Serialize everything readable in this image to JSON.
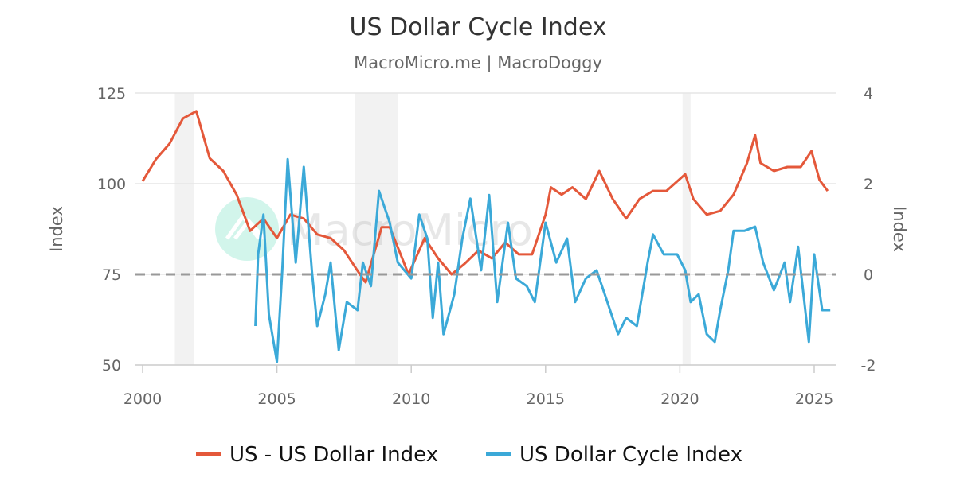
{
  "chart_data": {
    "type": "line",
    "title": "US Dollar Cycle Index",
    "subtitle": "MacroMicro.me | MacroDoggy",
    "watermark": "MacroMicro",
    "xlim": [
      2000,
      2025.8
    ],
    "x_ticks": [
      "2000",
      "2005",
      "2010",
      "2015",
      "2020",
      "2025"
    ],
    "y_left": {
      "label": "Index",
      "range": [
        50,
        125
      ],
      "ticks": [
        "50",
        "75",
        "100",
        "125"
      ]
    },
    "y_right": {
      "label": "Index",
      "range": [
        -2,
        4
      ],
      "ticks": [
        "-2",
        "0",
        "2",
        "4"
      ]
    },
    "reference_line": {
      "axis": "right",
      "value": 0,
      "style": "dashed",
      "color": "#999999"
    },
    "recession_shading": [
      [
        2001.2,
        2001.9
      ],
      [
        2007.9,
        2009.5
      ],
      [
        2020.1,
        2020.4
      ]
    ],
    "grid": "horizontal",
    "legend_position": "bottom",
    "series": [
      {
        "name": "US - US Dollar Index",
        "axis": "left",
        "color": "#e4583a",
        "x": [
          2000.0,
          2000.5,
          2001.0,
          2001.5,
          2002.0,
          2002.5,
          2003.0,
          2003.5,
          2004.0,
          2004.5,
          2005.0,
          2005.5,
          2006.0,
          2006.5,
          2007.0,
          2007.5,
          2008.0,
          2008.3,
          2008.9,
          2009.2,
          2009.9,
          2010.5,
          2011.0,
          2011.5,
          2012.0,
          2012.5,
          2013.0,
          2013.5,
          2014.0,
          2014.5,
          2015.0,
          2015.2,
          2015.6,
          2016.0,
          2016.5,
          2017.0,
          2017.5,
          2018.0,
          2018.5,
          2019.0,
          2019.5,
          2020.2,
          2020.5,
          2021.0,
          2021.5,
          2022.0,
          2022.5,
          2022.8,
          2023.0,
          2023.5,
          2024.0,
          2024.5,
          2024.9,
          2025.2,
          2025.5
        ],
        "y": [
          100.7,
          106.8,
          111,
          118,
          120,
          107,
          103.5,
          97,
          87,
          90.4,
          85,
          91.5,
          90.4,
          86,
          85,
          81.6,
          76,
          72.8,
          88,
          88,
          75,
          85,
          79.4,
          75,
          78,
          81.6,
          79.4,
          83.8,
          80.5,
          80.5,
          91.5,
          99,
          97,
          99,
          95.8,
          103.5,
          95.8,
          90.4,
          95.8,
          98,
          98,
          102.6,
          95.8,
          91.5,
          92.5,
          97,
          105.7,
          113.4,
          105.7,
          103.5,
          104.6,
          104.6,
          109,
          101,
          98
        ]
      },
      {
        "name": "US Dollar Cycle Index",
        "axis": "right",
        "color": "#3ba9d8",
        "x": [
          2004.2,
          2004.3,
          2004.5,
          2004.7,
          2005.0,
          2005.2,
          2005.4,
          2005.7,
          2006.0,
          2006.3,
          2006.5,
          2006.8,
          2007.0,
          2007.3,
          2007.6,
          2008.0,
          2008.2,
          2008.5,
          2008.8,
          2009.2,
          2009.5,
          2010.0,
          2010.3,
          2010.6,
          2010.8,
          2011.0,
          2011.2,
          2011.6,
          2011.9,
          2012.2,
          2012.6,
          2012.9,
          2013.2,
          2013.6,
          2013.9,
          2014.3,
          2014.6,
          2015.0,
          2015.4,
          2015.8,
          2016.1,
          2016.5,
          2016.9,
          2017.3,
          2017.7,
          2018.0,
          2018.4,
          2018.8,
          2019.0,
          2019.4,
          2019.9,
          2020.2,
          2020.4,
          2020.7,
          2021.0,
          2021.3,
          2021.5,
          2021.8,
          2022.0,
          2022.4,
          2022.8,
          2023.1,
          2023.5,
          2023.9,
          2024.1,
          2024.4,
          2024.8,
          2025.0,
          2025.3,
          2025.6
        ],
        "y": [
          -1.14,
          0.44,
          1.32,
          -0.88,
          -1.93,
          0.09,
          2.54,
          0.26,
          2.37,
          0.09,
          -1.14,
          -0.44,
          0.26,
          -1.67,
          -0.61,
          -0.79,
          0.26,
          -0.26,
          1.84,
          1.14,
          0.26,
          -0.09,
          1.32,
          0.79,
          -0.96,
          0.26,
          -1.32,
          -0.44,
          0.79,
          1.67,
          0.09,
          1.75,
          -0.61,
          1.14,
          -0.09,
          -0.26,
          -0.61,
          1.14,
          0.26,
          0.79,
          -0.61,
          -0.09,
          0.09,
          -0.61,
          -1.32,
          -0.96,
          -1.14,
          0.26,
          0.88,
          0.44,
          0.44,
          0.09,
          -0.61,
          -0.44,
          -1.32,
          -1.49,
          -0.79,
          0.09,
          0.96,
          0.96,
          1.05,
          0.26,
          -0.35,
          0.26,
          -0.61,
          0.61,
          -1.49,
          0.44,
          -0.79,
          -0.79
        ]
      }
    ]
  }
}
